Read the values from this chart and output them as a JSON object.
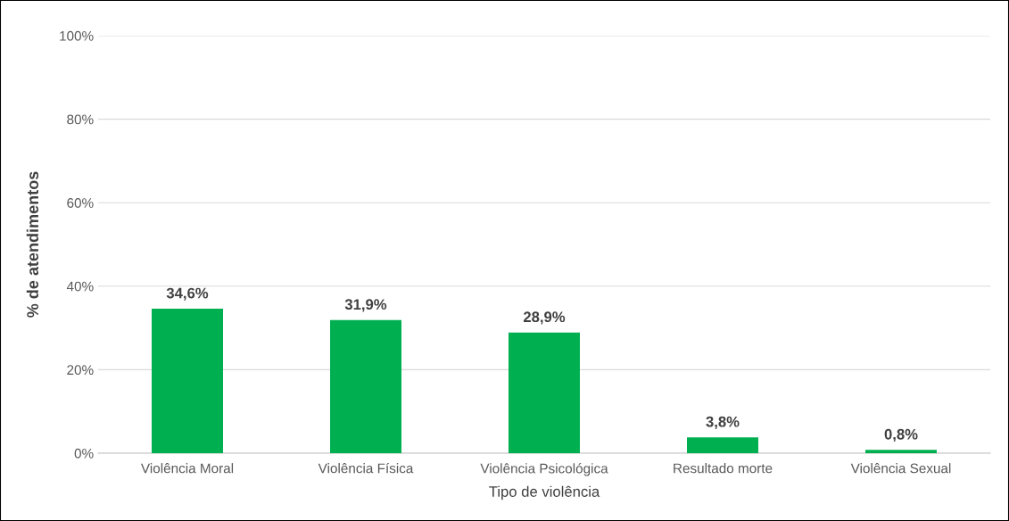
{
  "chart_data": {
    "type": "bar",
    "xlabel": "Tipo de violência",
    "ylabel": "% de atendimentos",
    "categories": [
      "Violência Moral",
      "Violência Física",
      "Violência Psicológica",
      "Resultado morte",
      "Violência Sexual"
    ],
    "values": [
      34.6,
      31.9,
      28.9,
      3.8,
      0.8
    ],
    "value_labels": [
      "34,6%",
      "31,9%",
      "28,9%",
      "3,8%",
      "0,8%"
    ],
    "color": "#00b050",
    "ylim": [
      0,
      100
    ],
    "yticks": [
      {
        "value": 0,
        "label": "0%"
      },
      {
        "value": 20,
        "label": "20%"
      },
      {
        "value": 40,
        "label": "40%"
      },
      {
        "value": 60,
        "label": "60%"
      },
      {
        "value": 80,
        "label": "80%"
      },
      {
        "value": 100,
        "label": "100%"
      }
    ],
    "grid": "y"
  }
}
